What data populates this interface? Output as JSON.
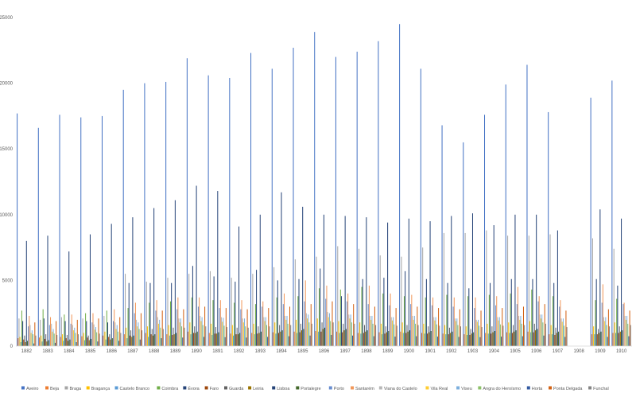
{
  "chart_data": {
    "type": "bar",
    "title": "",
    "xlabel": "",
    "ylabel": "",
    "ylim": [
      0,
      25000
    ],
    "yticks": [
      0,
      5000,
      10000,
      15000,
      20000,
      25000
    ],
    "grid": false,
    "legend": "bottom",
    "categories": [
      "1882",
      "1883",
      "1884",
      "1885",
      "1886",
      "1887",
      "1888",
      "1889",
      "1890",
      "1891",
      "1892",
      "1893",
      "1894",
      "1895",
      "1896",
      "1897",
      "1898",
      "1899",
      "1900",
      "1901",
      "1902",
      "1903",
      "1904",
      "1905",
      "1906",
      "1907",
      "1908",
      "1909",
      "1910"
    ],
    "series": [
      {
        "name": "Aveiro",
        "color": "#4472c4",
        "values": [
          17700,
          16600,
          17600,
          17400,
          17500,
          19500,
          20000,
          20100,
          21900,
          20600,
          20400,
          22300,
          21100,
          22700,
          23900,
          22000,
          22400,
          23200,
          24500,
          21100,
          16800,
          15500,
          17600,
          19900,
          21400,
          17800,
          0,
          18900,
          20200
        ]
      },
      {
        "name": "Beja",
        "color": "#ed7d31",
        "values": [
          600,
          650,
          700,
          750,
          800,
          900,
          1000,
          900,
          1100,
          1000,
          950,
          1000,
          1050,
          1100,
          1150,
          1100,
          1000,
          1050,
          1100,
          1000,
          950,
          900,
          1000,
          1050,
          1100,
          900,
          0,
          900,
          1000
        ]
      },
      {
        "name": "Braga",
        "color": "#a5a5a5",
        "values": [
          2100,
          2000,
          2200,
          2100,
          2300,
          5500,
          4900,
          5200,
          5500,
          5700,
          5200,
          5500,
          6000,
          6600,
          6800,
          7600,
          7400,
          6900,
          6800,
          7500,
          8600,
          8600,
          8800,
          8400,
          8400,
          8500,
          0,
          8200,
          7400
        ]
      },
      {
        "name": "Bragança",
        "color": "#ffc000",
        "values": [
          700,
          800,
          900,
          1000,
          1100,
          1400,
          1500,
          1600,
          1800,
          1700,
          1600,
          1700,
          1800,
          2000,
          2100,
          1900,
          1800,
          1700,
          1800,
          1700,
          1600,
          1500,
          1700,
          1800,
          1900,
          1600,
          0,
          1500,
          1800
        ]
      },
      {
        "name": "Castelo Branco",
        "color": "#5b9bd5",
        "values": [
          300,
          350,
          400,
          450,
          500,
          600,
          700,
          800,
          900,
          850,
          800,
          900,
          950,
          1000,
          1100,
          1000,
          950,
          900,
          1000,
          950,
          900,
          850,
          950,
          1000,
          1050,
          900,
          0,
          900,
          1000
        ]
      },
      {
        "name": "Coimbra",
        "color": "#70ad47",
        "values": [
          2700,
          2800,
          2400,
          2500,
          2700,
          2900,
          3300,
          3400,
          3700,
          3500,
          3300,
          3200,
          3700,
          3800,
          4400,
          4300,
          4500,
          4000,
          3800,
          3700,
          3900,
          3800,
          3900,
          4000,
          4300,
          3800,
          0,
          3500,
          3600
        ]
      },
      {
        "name": "Évora",
        "color": "#264478",
        "values": [
          1900,
          2100,
          1900,
          1900,
          1800,
          4800,
          4800,
          4800,
          6100,
          5300,
          4900,
          5800,
          5000,
          5100,
          5900,
          3800,
          5100,
          5200,
          5700,
          5100,
          4800,
          4400,
          4800,
          5100,
          5100,
          4800,
          0,
          5100,
          4600
        ]
      },
      {
        "name": "Faro",
        "color": "#9e480e",
        "values": [
          500,
          550,
          600,
          650,
          700,
          800,
          900,
          850,
          1000,
          950,
          900,
          950,
          1000,
          1050,
          1100,
          1050,
          1000,
          950,
          1000,
          950,
          900,
          850,
          950,
          1000,
          1050,
          850,
          0,
          900,
          1000
        ]
      },
      {
        "name": "Guarda",
        "color": "#636363",
        "values": [
          800,
          900,
          850,
          800,
          900,
          1200,
          1300,
          1400,
          1500,
          1450,
          1400,
          1500,
          1600,
          1700,
          1800,
          1700,
          1600,
          1500,
          1600,
          1500,
          1400,
          1300,
          1500,
          1600,
          1700,
          1400,
          0,
          1300,
          1500
        ]
      },
      {
        "name": "Leiria",
        "color": "#997300",
        "values": [
          300,
          350,
          400,
          450,
          500,
          700,
          800,
          900,
          1000,
          950,
          900,
          1000,
          1100,
          1200,
          1300,
          1200,
          1100,
          1050,
          1100,
          1050,
          1000,
          950,
          1050,
          1100,
          1200,
          1000,
          0,
          1000,
          1100
        ]
      },
      {
        "name": "Lisboa",
        "color": "#264478",
        "values": [
          8000,
          8400,
          7200,
          8500,
          9300,
          9800,
          10500,
          11100,
          12200,
          11800,
          9100,
          10000,
          11700,
          10600,
          10000,
          9900,
          9800,
          9400,
          9700,
          9500,
          9900,
          10100,
          9200,
          10000,
          10000,
          8800,
          0,
          10400,
          9700
        ]
      },
      {
        "name": "Portalegre",
        "color": "#43682b",
        "values": [
          400,
          450,
          500,
          550,
          600,
          800,
          900,
          1000,
          1100,
          1050,
          1000,
          1100,
          1200,
          1300,
          1400,
          1300,
          1200,
          1150,
          1200,
          1150,
          1100,
          1050,
          1150,
          1200,
          1300,
          1100,
          0,
          1100,
          1200
        ]
      },
      {
        "name": "Porto",
        "color": "#698ed0",
        "values": [
          1500,
          1600,
          1700,
          1800,
          1900,
          2500,
          2700,
          2800,
          3000,
          2900,
          2800,
          3000,
          3200,
          3400,
          3600,
          3400,
          3200,
          3100,
          3200,
          3100,
          3000,
          2900,
          3100,
          3200,
          3400,
          3000,
          0,
          3300,
          3200
        ]
      },
      {
        "name": "Santarém",
        "color": "#f1975a",
        "values": [
          2300,
          2200,
          2400,
          2500,
          2800,
          3300,
          3500,
          3700,
          3700,
          3500,
          3500,
          3400,
          4000,
          5000,
          4600,
          4000,
          4600,
          4000,
          3900,
          3700,
          3700,
          3700,
          3800,
          4500,
          3800,
          3500,
          0,
          4700,
          3300
        ]
      },
      {
        "name": "Viana do Castelo",
        "color": "#b7b7b7",
        "values": [
          1600,
          1700,
          1600,
          1650,
          1800,
          2000,
          2200,
          2100,
          2300,
          2200,
          2100,
          2200,
          2300,
          2500,
          2600,
          2400,
          2300,
          2200,
          2300,
          2200,
          2100,
          2000,
          2200,
          2300,
          2400,
          2100,
          0,
          2200,
          2300
        ]
      },
      {
        "name": "Vila Real",
        "color": "#ffcd33",
        "values": [
          1000,
          1100,
          1200,
          1250,
          1300,
          1500,
          1700,
          1800,
          1900,
          1850,
          1800,
          1900,
          2000,
          2100,
          2200,
          2100,
          2000,
          1950,
          2000,
          1950,
          1900,
          1850,
          1950,
          2000,
          2100,
          1850,
          0,
          1900,
          2000
        ]
      },
      {
        "name": "Viseu",
        "color": "#7cafdd",
        "values": [
          1200,
          1300,
          1400,
          1450,
          1600,
          1800,
          2000,
          2100,
          2200,
          2150,
          2100,
          2200,
          2300,
          2400,
          2500,
          2400,
          2300,
          2200,
          2300,
          2200,
          2100,
          2000,
          2200,
          2300,
          2400,
          2100,
          0,
          2200,
          2300
        ]
      },
      {
        "name": "Angra do Heroísmo",
        "color": "#8cc168",
        "values": [
          900,
          950,
          1000,
          1050,
          1100,
          1300,
          1400,
          1500,
          1600,
          1550,
          1500,
          1600,
          1700,
          1800,
          1900,
          1800,
          1700,
          1650,
          1700,
          1650,
          1600,
          1550,
          1650,
          1700,
          1800,
          1550,
          0,
          1600,
          1700
        ]
      },
      {
        "name": "Horta",
        "color": "#335aa1",
        "values": [
          200,
          250,
          300,
          350,
          400,
          500,
          600,
          650,
          700,
          680,
          650,
          700,
          750,
          800,
          850,
          800,
          750,
          720,
          750,
          720,
          700,
          680,
          720,
          750,
          800,
          700,
          0,
          700,
          750
        ]
      },
      {
        "name": "Ponta Delgada",
        "color": "#d26012",
        "values": [
          1800,
          1900,
          2000,
          2100,
          2200,
          2500,
          2700,
          2800,
          3000,
          2900,
          2800,
          2900,
          3000,
          3200,
          3400,
          3200,
          3000,
          2900,
          3000,
          2900,
          2800,
          2700,
          2900,
          3000,
          3200,
          2700,
          0,
          2800,
          2700
        ]
      },
      {
        "name": "Funchal",
        "color": "#848484",
        "values": [
          800,
          850,
          900,
          950,
          1000,
          1200,
          1300,
          1400,
          1500,
          1450,
          1400,
          1500,
          1600,
          1700,
          1800,
          1700,
          1600,
          1550,
          1600,
          1550,
          1500,
          1450,
          1550,
          1600,
          1700,
          1450,
          0,
          1500,
          1600
        ]
      }
    ]
  }
}
